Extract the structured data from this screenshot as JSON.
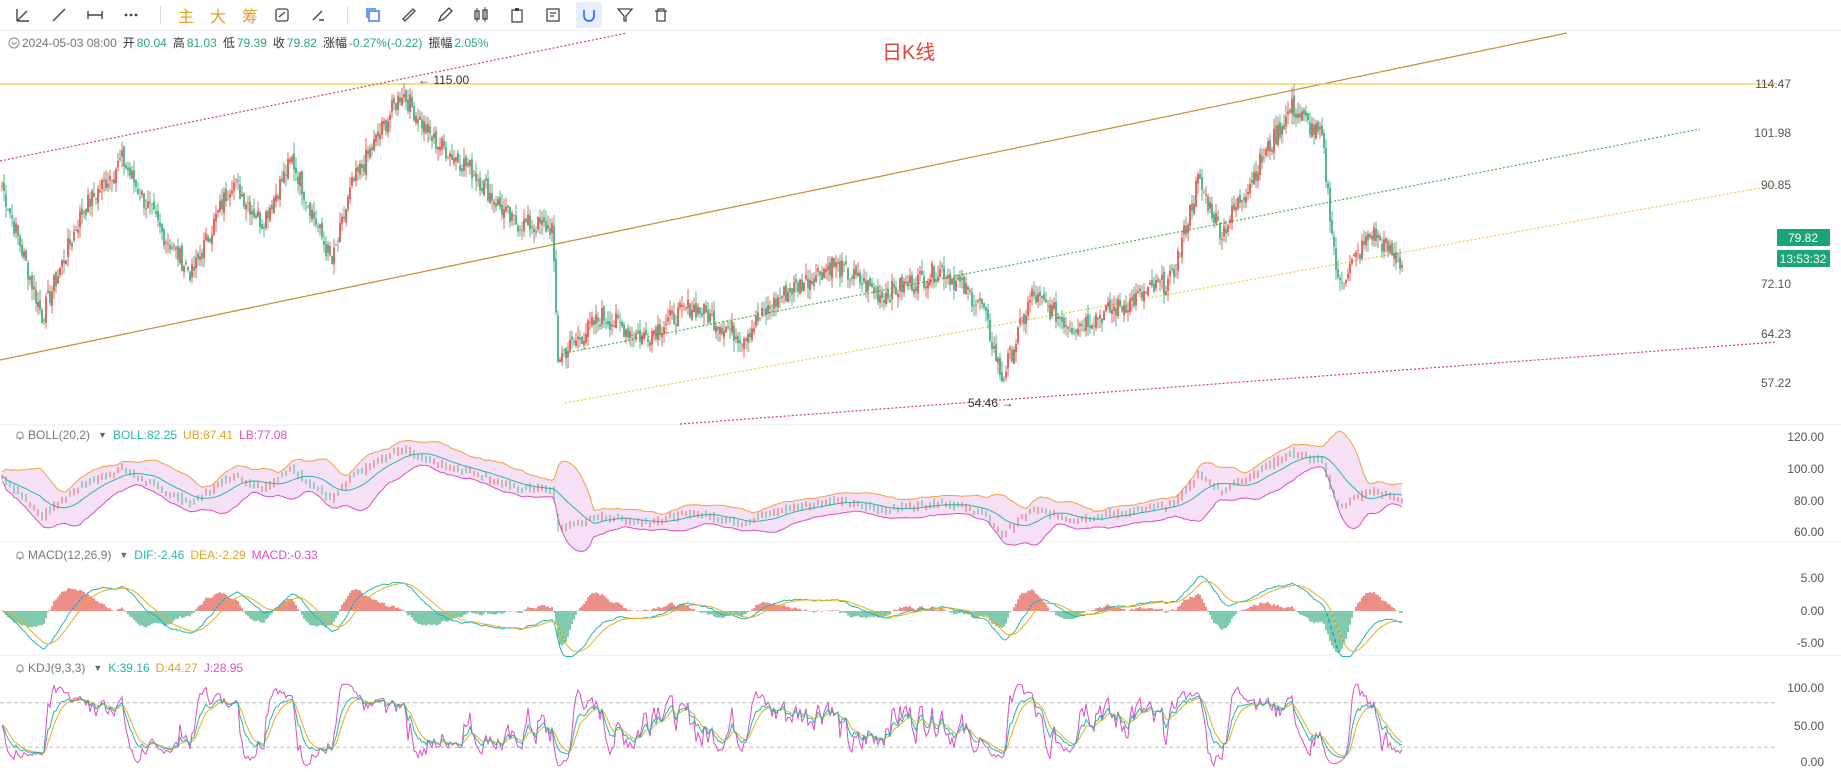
{
  "toolbar": {
    "tools": [
      "trend-angle-icon",
      "trend-line-icon",
      "measure-icon",
      "more-icon"
    ],
    "text_buttons": [
      "主",
      "大",
      "筹"
    ],
    "tools2": [
      "copy-icon",
      "ruler-icon",
      "pen-icon",
      "candle-icon",
      "clipboard-icon",
      "edit-doc-icon",
      "magnet-icon",
      "filter-icon",
      "trash-icon"
    ]
  },
  "info_bar": {
    "date": "2024-05-03 08:00",
    "open_label": "开",
    "open": "80.04",
    "high_label": "高",
    "high": "81.03",
    "low_label": "低",
    "low": "79.39",
    "close_label": "收",
    "close": "79.82",
    "change_label": "涨幅",
    "change": "-0.27%(-0.22)",
    "amp_label": "振幅",
    "amp": "2.05%"
  },
  "chart_title": "日K线",
  "price_axis": [
    "114.47",
    "101.98",
    "90.85",
    "72.10",
    "64.23",
    "57.22"
  ],
  "last_price_badge": "79.82",
  "countdown_badge": "13:53:32",
  "high_marker": "115.00",
  "low_marker": "54.46",
  "boll": {
    "name": "BOLL(20,2)",
    "boll_label": "BOLL:82.25",
    "ub_label": "UB:87.41",
    "lb_label": "LB:77.08",
    "axis": [
      "120.00",
      "100.00",
      "80.00",
      "60.00"
    ]
  },
  "macd": {
    "name": "MACD(12,26,9)",
    "dif_label": "DIF:-2.46",
    "dea_label": "DEA:-2.29",
    "macd_label": "MACD:-0.33",
    "axis": [
      "5.00",
      "0.00",
      "-5.00"
    ]
  },
  "kdj": {
    "name": "KDJ(9,3,3)",
    "k_label": "K:39.16",
    "d_label": "D:44.27",
    "j_label": "J:28.95",
    "axis": [
      "100.00",
      "50.00",
      "0.00"
    ]
  },
  "colors": {
    "up": "#e0443a",
    "down": "#2aa676",
    "channel_main": "#c8913c",
    "horizontal": "#e8d040",
    "dotted_red": "#d8405a",
    "dotted_green": "#4caf50",
    "dotted_yellow": "#f0c840",
    "boll_mid": "#2bb3b0",
    "boll_ub": "#f0a040",
    "boll_lb": "#d94fc3",
    "boll_fill": "#f2d8f2",
    "kdj_k": "#2bb3b0",
    "kdj_d": "#e8b020",
    "kdj_j": "#d94fc3",
    "badge": "#1aa674"
  },
  "chart_data": {
    "type": "candlestick",
    "last_close": 79.82,
    "period_high": 115.0,
    "period_low": 54.46,
    "key_prices": [
      [
        0,
        95
      ],
      [
        20,
        70
      ],
      [
        40,
        90
      ],
      [
        60,
        100
      ],
      [
        80,
        86
      ],
      [
        95,
        78
      ],
      [
        115,
        96
      ],
      [
        130,
        88
      ],
      [
        145,
        100
      ],
      [
        165,
        80
      ],
      [
        175,
        95
      ],
      [
        200,
        113
      ],
      [
        215,
        104
      ],
      [
        235,
        98
      ],
      [
        255,
        88
      ],
      [
        275,
        87
      ],
      [
        278,
        62
      ],
      [
        300,
        70
      ],
      [
        320,
        66
      ],
      [
        345,
        72
      ],
      [
        370,
        66
      ],
      [
        390,
        74
      ],
      [
        415,
        80
      ],
      [
        440,
        74
      ],
      [
        470,
        79
      ],
      [
        490,
        72
      ],
      [
        500,
        58
      ],
      [
        515,
        74
      ],
      [
        535,
        68
      ],
      [
        560,
        72
      ],
      [
        585,
        77
      ],
      [
        598,
        96
      ],
      [
        610,
        86
      ],
      [
        630,
        100
      ],
      [
        645,
        110
      ],
      [
        660,
        104
      ],
      [
        668,
        76
      ],
      [
        685,
        86
      ],
      [
        700,
        80
      ]
    ]
  }
}
